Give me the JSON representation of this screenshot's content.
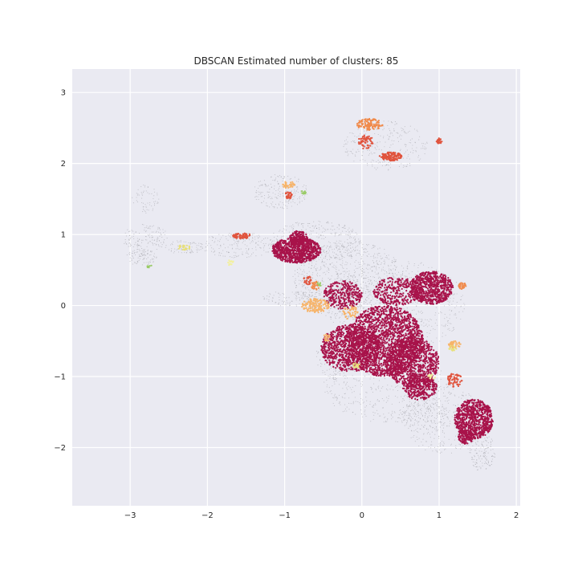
{
  "chart_data": {
    "type": "scatter",
    "title": "DBSCAN Estimated number of clusters: 85",
    "xlabel": "",
    "ylabel": "",
    "xlim": [
      -3.75,
      2.05
    ],
    "ylim": [
      -2.82,
      3.33
    ],
    "x_ticks": [
      -3,
      -2,
      -1,
      0,
      1,
      2
    ],
    "y_ticks": [
      -2,
      -1,
      0,
      1,
      2,
      3
    ],
    "grid": true,
    "background": "#eaeaf2",
    "grid_color": "#ffffff",
    "colors": {
      "noise": "#9a9aa0",
      "dominant": "#a8134a",
      "orange": "#f08a4b",
      "red_orange": "#e0543e",
      "light_orange": "#f7b46a",
      "yellow": "#e8e07a",
      "pale_yellow": "#f2f0a0",
      "green": "#9acb68"
    },
    "series": [
      {
        "color_key": "noise",
        "regions": [
          {
            "cx": -0.15,
            "cy": 0.35,
            "rx": 0.75,
            "ry": 0.55,
            "n": 900
          },
          {
            "cx": -0.6,
            "cy": 0.9,
            "rx": 0.6,
            "ry": 0.3,
            "n": 350
          },
          {
            "cx": 0.45,
            "cy": 0.0,
            "rx": 0.9,
            "ry": 0.65,
            "n": 700
          },
          {
            "cx": 0.3,
            "cy": -1.1,
            "rx": 0.8,
            "ry": 0.55,
            "n": 500
          },
          {
            "cx": 1.05,
            "cy": -1.6,
            "rx": 0.5,
            "ry": 0.5,
            "n": 350
          },
          {
            "cx": 1.55,
            "cy": -2.05,
            "rx": 0.18,
            "ry": 0.28,
            "n": 150
          },
          {
            "cx": -1.05,
            "cy": 1.6,
            "rx": 0.35,
            "ry": 0.25,
            "n": 200
          },
          {
            "cx": -1.6,
            "cy": 0.85,
            "rx": 0.5,
            "ry": 0.18,
            "n": 200
          },
          {
            "cx": -2.8,
            "cy": 0.95,
            "rx": 0.3,
            "ry": 0.2,
            "n": 140
          },
          {
            "cx": -2.85,
            "cy": 0.68,
            "rx": 0.2,
            "ry": 0.12,
            "n": 90
          },
          {
            "cx": -2.3,
            "cy": 0.82,
            "rx": 0.25,
            "ry": 0.1,
            "n": 80
          },
          {
            "cx": -2.8,
            "cy": 1.5,
            "rx": 0.18,
            "ry": 0.2,
            "n": 60
          },
          {
            "cx": 0.3,
            "cy": 2.25,
            "rx": 0.55,
            "ry": 0.35,
            "n": 260
          },
          {
            "cx": -0.8,
            "cy": 0.1,
            "rx": 0.5,
            "ry": 0.12,
            "n": 150
          },
          {
            "cx": -0.3,
            "cy": -0.7,
            "rx": 0.3,
            "ry": 0.35,
            "n": 150
          },
          {
            "cx": 0.8,
            "cy": -1.55,
            "rx": 0.35,
            "ry": 0.2,
            "n": 150
          }
        ]
      },
      {
        "color_key": "dominant",
        "regions": [
          {
            "cx": -0.85,
            "cy": 0.78,
            "rx": 0.32,
            "ry": 0.18,
            "n": 900
          },
          {
            "cx": -0.82,
            "cy": 0.95,
            "rx": 0.12,
            "ry": 0.1,
            "n": 180
          },
          {
            "cx": 0.3,
            "cy": -0.5,
            "rx": 0.5,
            "ry": 0.5,
            "n": 1800
          },
          {
            "cx": -0.15,
            "cy": -0.6,
            "rx": 0.38,
            "ry": 0.33,
            "n": 900
          },
          {
            "cx": 0.65,
            "cy": -0.8,
            "rx": 0.35,
            "ry": 0.35,
            "n": 900
          },
          {
            "cx": 0.9,
            "cy": 0.25,
            "rx": 0.28,
            "ry": 0.23,
            "n": 700
          },
          {
            "cx": 0.45,
            "cy": 0.2,
            "rx": 0.3,
            "ry": 0.2,
            "n": 300
          },
          {
            "cx": -0.25,
            "cy": 0.15,
            "rx": 0.25,
            "ry": 0.2,
            "n": 300
          },
          {
            "cx": 0.75,
            "cy": -1.15,
            "rx": 0.22,
            "ry": 0.18,
            "n": 300
          },
          {
            "cx": 1.45,
            "cy": -1.6,
            "rx": 0.25,
            "ry": 0.28,
            "n": 800
          },
          {
            "cx": 1.35,
            "cy": -1.85,
            "rx": 0.1,
            "ry": 0.1,
            "n": 120
          }
        ]
      },
      {
        "color_key": "orange",
        "regions": [
          {
            "cx": 0.1,
            "cy": 2.55,
            "rx": 0.17,
            "ry": 0.08,
            "n": 120
          },
          {
            "cx": 1.3,
            "cy": 0.28,
            "rx": 0.05,
            "ry": 0.05,
            "n": 30
          },
          {
            "cx": -0.6,
            "cy": 0.28,
            "rx": 0.06,
            "ry": 0.06,
            "n": 30
          }
        ]
      },
      {
        "color_key": "red_orange",
        "regions": [
          {
            "cx": 0.38,
            "cy": 2.1,
            "rx": 0.15,
            "ry": 0.06,
            "n": 150
          },
          {
            "cx": 0.05,
            "cy": 2.3,
            "rx": 0.1,
            "ry": 0.1,
            "n": 60
          },
          {
            "cx": -1.55,
            "cy": 0.98,
            "rx": 0.12,
            "ry": 0.04,
            "n": 80
          },
          {
            "cx": -0.95,
            "cy": 1.55,
            "rx": 0.05,
            "ry": 0.05,
            "n": 40
          },
          {
            "cx": 1.0,
            "cy": 2.32,
            "rx": 0.04,
            "ry": 0.04,
            "n": 25
          },
          {
            "cx": 1.2,
            "cy": -1.05,
            "rx": 0.1,
            "ry": 0.1,
            "n": 60
          },
          {
            "cx": -0.7,
            "cy": 0.35,
            "rx": 0.06,
            "ry": 0.06,
            "n": 30
          }
        ]
      },
      {
        "color_key": "light_orange",
        "regions": [
          {
            "cx": -0.6,
            "cy": 0.0,
            "rx": 0.18,
            "ry": 0.1,
            "n": 140
          },
          {
            "cx": -0.95,
            "cy": 1.7,
            "rx": 0.08,
            "ry": 0.05,
            "n": 40
          },
          {
            "cx": -0.15,
            "cy": -0.1,
            "rx": 0.1,
            "ry": 0.1,
            "n": 50
          },
          {
            "cx": 1.2,
            "cy": -0.55,
            "rx": 0.08,
            "ry": 0.05,
            "n": 40
          },
          {
            "cx": -0.45,
            "cy": -0.45,
            "rx": 0.05,
            "ry": 0.05,
            "n": 20
          }
        ]
      },
      {
        "color_key": "yellow",
        "regions": [
          {
            "cx": -2.3,
            "cy": 0.82,
            "rx": 0.08,
            "ry": 0.04,
            "n": 25
          },
          {
            "cx": -0.08,
            "cy": -0.85,
            "rx": 0.06,
            "ry": 0.04,
            "n": 20
          },
          {
            "cx": 1.18,
            "cy": -0.6,
            "rx": 0.05,
            "ry": 0.04,
            "n": 15
          }
        ]
      },
      {
        "color_key": "green",
        "regions": [
          {
            "cx": -0.75,
            "cy": 1.6,
            "rx": 0.03,
            "ry": 0.03,
            "n": 12
          },
          {
            "cx": -2.75,
            "cy": 0.55,
            "rx": 0.03,
            "ry": 0.03,
            "n": 8
          },
          {
            "cx": -0.55,
            "cy": 0.3,
            "rx": 0.03,
            "ry": 0.03,
            "n": 8
          }
        ]
      },
      {
        "color_key": "pale_yellow",
        "regions": [
          {
            "cx": -1.7,
            "cy": 0.6,
            "rx": 0.05,
            "ry": 0.04,
            "n": 15
          },
          {
            "cx": 0.9,
            "cy": -1.0,
            "rx": 0.05,
            "ry": 0.04,
            "n": 15
          }
        ]
      }
    ]
  }
}
